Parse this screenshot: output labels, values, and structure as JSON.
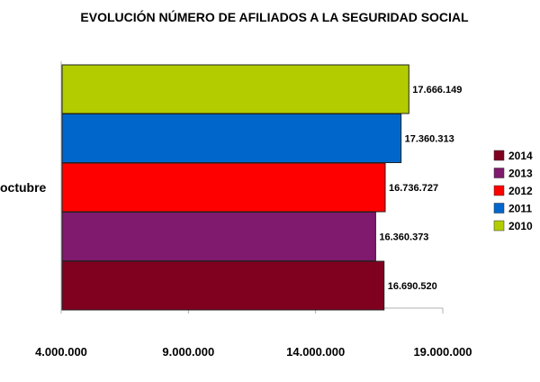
{
  "chart_data": {
    "type": "bar",
    "orientation": "horizontal",
    "title": "EVOLUCIÓN NÚMERO DE AFILIADOS A LA SEGURIDAD SOCIAL",
    "categories": [
      "octubre"
    ],
    "series": [
      {
        "name": "2014",
        "values": [
          16690520
        ],
        "label": "16.690.520",
        "color": "#800020"
      },
      {
        "name": "2013",
        "values": [
          16360373
        ],
        "label": "16.360.373",
        "color": "#7f1a6e"
      },
      {
        "name": "2012",
        "values": [
          16736727
        ],
        "label": "16.736.727",
        "color": "#ff0000"
      },
      {
        "name": "2011",
        "values": [
          17360313
        ],
        "label": "17.360.313",
        "color": "#0066cc"
      },
      {
        "name": "2010",
        "values": [
          17666149
        ],
        "label": "17.666.149",
        "color": "#b3cc00"
      }
    ],
    "xlim": [
      4000000,
      19000000
    ],
    "xticks": [
      4000000,
      9000000,
      14000000,
      19000000
    ],
    "xtick_labels": [
      "4.000.000",
      "9.000.000",
      "14.000.000",
      "19.000.000"
    ],
    "legend_position": "right",
    "grid": false
  }
}
